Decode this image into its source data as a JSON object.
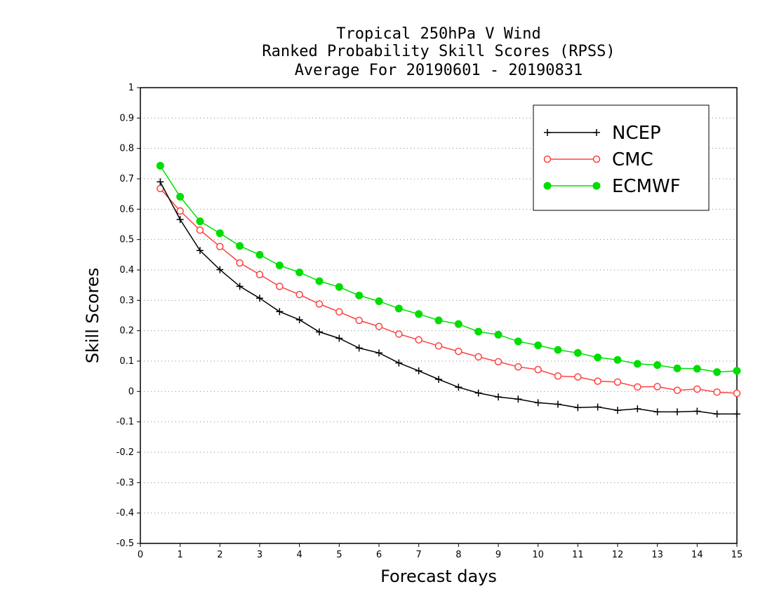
{
  "chart_data": {
    "type": "line",
    "title": [
      "Tropical 250hPa V Wind",
      "Ranked Probability Skill Scores (RPSS)",
      "Average For 20190601 - 20190831"
    ],
    "xlabel": "Forecast days",
    "ylabel": "Skill Scores",
    "xlim": [
      0,
      15
    ],
    "ylim": [
      -0.5,
      1
    ],
    "xticks": [
      "0",
      "1",
      "2",
      "3",
      "4",
      "5",
      "6",
      "7",
      "8",
      "9",
      "10",
      "11",
      "12",
      "13",
      "14",
      "15"
    ],
    "yticks": [
      "-0.5",
      "-0.4",
      "-0.3",
      "-0.2",
      "-0.1",
      "0",
      "0.1",
      "0.2",
      "0.3",
      "0.4",
      "0.5",
      "0.6",
      "0.7",
      "0.8",
      "0.9",
      "1"
    ],
    "grid": "horizontal dotted",
    "legend_position": "top-right",
    "x": [
      0.5,
      1,
      1.5,
      2,
      2.5,
      3,
      3.5,
      4,
      4.5,
      5,
      5.5,
      6,
      6.5,
      7,
      7.5,
      8,
      8.5,
      9,
      9.5,
      10,
      10.5,
      11,
      11.5,
      12,
      12.5,
      13,
      13.5,
      14,
      14.5,
      15
    ],
    "series": [
      {
        "name": "NCEP",
        "color": "#000000",
        "marker": "plus",
        "values": [
          0.69,
          0.566,
          0.464,
          0.401,
          0.346,
          0.307,
          0.263,
          0.236,
          0.196,
          0.175,
          0.143,
          0.127,
          0.094,
          0.068,
          0.04,
          0.014,
          -0.005,
          -0.018,
          -0.025,
          -0.037,
          -0.042,
          -0.053,
          -0.051,
          -0.062,
          -0.057,
          -0.067,
          -0.067,
          -0.065,
          -0.074,
          -0.074
        ]
      },
      {
        "name": "CMC",
        "color": "#ff4040",
        "marker": "open-circle",
        "values": [
          0.668,
          0.594,
          0.531,
          0.477,
          0.423,
          0.385,
          0.346,
          0.319,
          0.288,
          0.262,
          0.234,
          0.214,
          0.189,
          0.17,
          0.15,
          0.132,
          0.114,
          0.098,
          0.081,
          0.072,
          0.051,
          0.048,
          0.034,
          0.031,
          0.015,
          0.016,
          0.004,
          0.008,
          -0.002,
          -0.006
        ]
      },
      {
        "name": "ECMWF",
        "color": "#00dd00",
        "marker": "filled-circle",
        "values": [
          0.743,
          0.641,
          0.56,
          0.521,
          0.479,
          0.45,
          0.415,
          0.392,
          0.363,
          0.344,
          0.316,
          0.297,
          0.273,
          0.255,
          0.234,
          0.222,
          0.197,
          0.187,
          0.165,
          0.152,
          0.137,
          0.127,
          0.112,
          0.104,
          0.091,
          0.087,
          0.076,
          0.075,
          0.064,
          0.068
        ]
      }
    ]
  }
}
